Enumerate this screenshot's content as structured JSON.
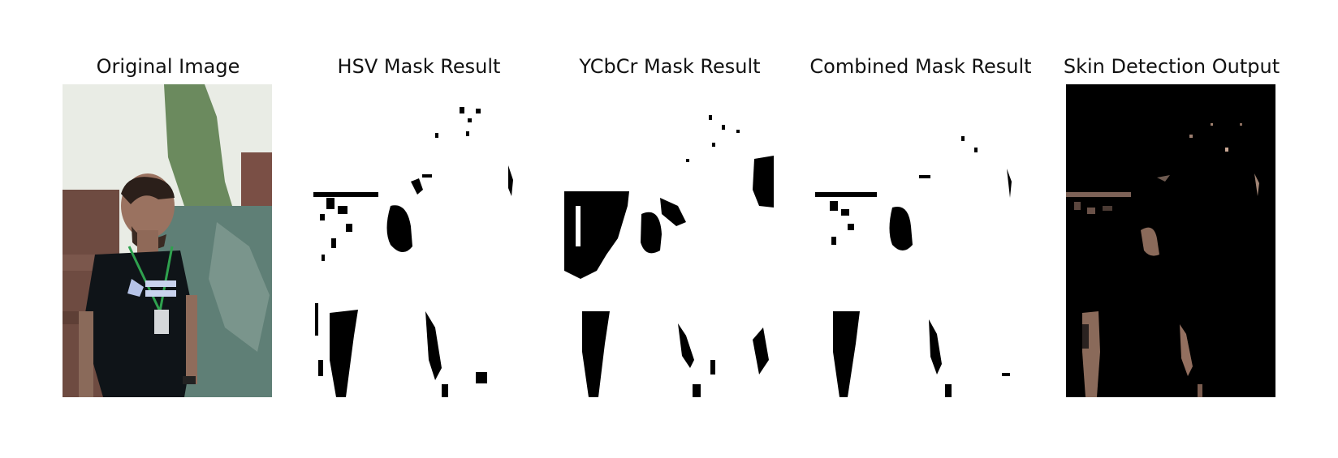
{
  "figure": {
    "panels": [
      {
        "title": "Original Image",
        "icon": "photo-icon"
      },
      {
        "title": "HSV Mask Result",
        "icon": "mask-icon"
      },
      {
        "title": "YCbCr Mask Result",
        "icon": "mask-icon"
      },
      {
        "title": "Combined Mask Result",
        "icon": "mask-icon"
      },
      {
        "title": "Skin Detection Output",
        "icon": "skin-output-icon"
      }
    ]
  },
  "colors": {
    "mask_black": "#000000",
    "mask_white": "#ffffff",
    "skin_tone": "#8a6a5a",
    "tshirt": "#0f1418",
    "wall_brick": "#6e4b41",
    "foliage": "#5f7f76",
    "sky": "#e9ece5"
  }
}
